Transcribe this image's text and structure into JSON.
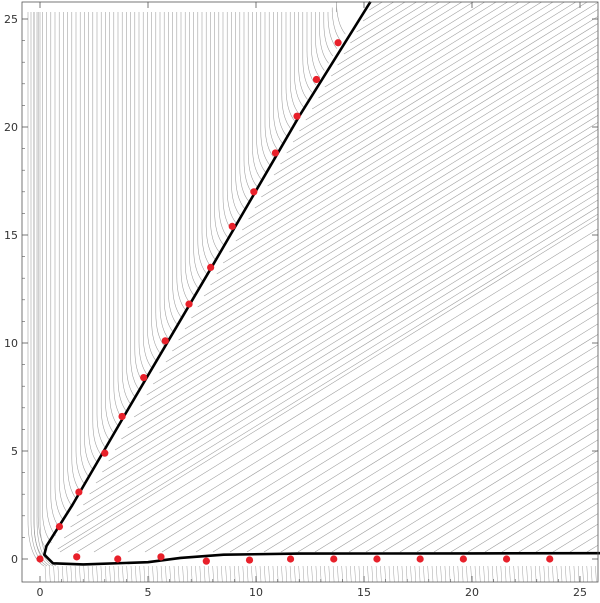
{
  "chart_data": {
    "type": "scatter",
    "title": "",
    "xlabel": "",
    "ylabel": "",
    "xlim": [
      -1,
      26
    ],
    "ylim": [
      -1.5,
      25.5
    ],
    "x_ticks": [
      "0",
      "5",
      "10",
      "15",
      "20",
      "25"
    ],
    "y_ticks": [
      "0",
      "5",
      "10",
      "15",
      "20",
      "25"
    ],
    "grid": false,
    "legend": "none",
    "colors": {
      "points": "#e8202a",
      "curve": "#000000",
      "streamlines": "#8a8a8a",
      "frame": "#555555",
      "text": "#333333"
    },
    "series": [
      {
        "marker": "point",
        "points": [
          [
            0.0,
            0.0
          ],
          [
            0.9,
            1.5
          ],
          [
            1.8,
            3.1
          ],
          [
            3.0,
            4.9
          ],
          [
            3.8,
            6.6
          ],
          [
            4.8,
            8.4
          ],
          [
            5.8,
            10.1
          ],
          [
            6.9,
            11.8
          ],
          [
            7.9,
            13.5
          ],
          [
            8.9,
            15.4
          ],
          [
            9.9,
            17.0
          ],
          [
            10.9,
            18.8
          ],
          [
            11.9,
            20.5
          ],
          [
            12.8,
            22.2
          ],
          [
            13.8,
            23.9
          ],
          [
            1.7,
            0.1
          ],
          [
            3.6,
            0.0
          ],
          [
            5.6,
            0.1
          ],
          [
            7.7,
            -0.1
          ],
          [
            9.7,
            -0.05
          ],
          [
            11.6,
            0.0
          ],
          [
            13.6,
            0.0
          ],
          [
            15.6,
            0.0
          ],
          [
            17.6,
            0.0
          ],
          [
            19.6,
            0.0
          ],
          [
            21.6,
            0.0
          ],
          [
            23.6,
            0.0
          ]
        ]
      },
      {
        "marker": "curve",
        "points": [
          [
            15.3,
            25.8
          ],
          [
            12.0,
            20.5
          ],
          [
            8.0,
            13.6
          ],
          [
            4.0,
            6.8
          ],
          [
            1.5,
            2.5
          ],
          [
            0.3,
            0.6
          ],
          [
            0.2,
            0.2
          ],
          [
            0.6,
            -0.2
          ],
          [
            2.0,
            -0.25
          ],
          [
            5.0,
            -0.15
          ],
          [
            6.5,
            0.05
          ],
          [
            8.5,
            0.2
          ],
          [
            12.0,
            0.25
          ],
          [
            20.0,
            0.26
          ],
          [
            26.0,
            0.27
          ]
        ]
      }
    ]
  }
}
